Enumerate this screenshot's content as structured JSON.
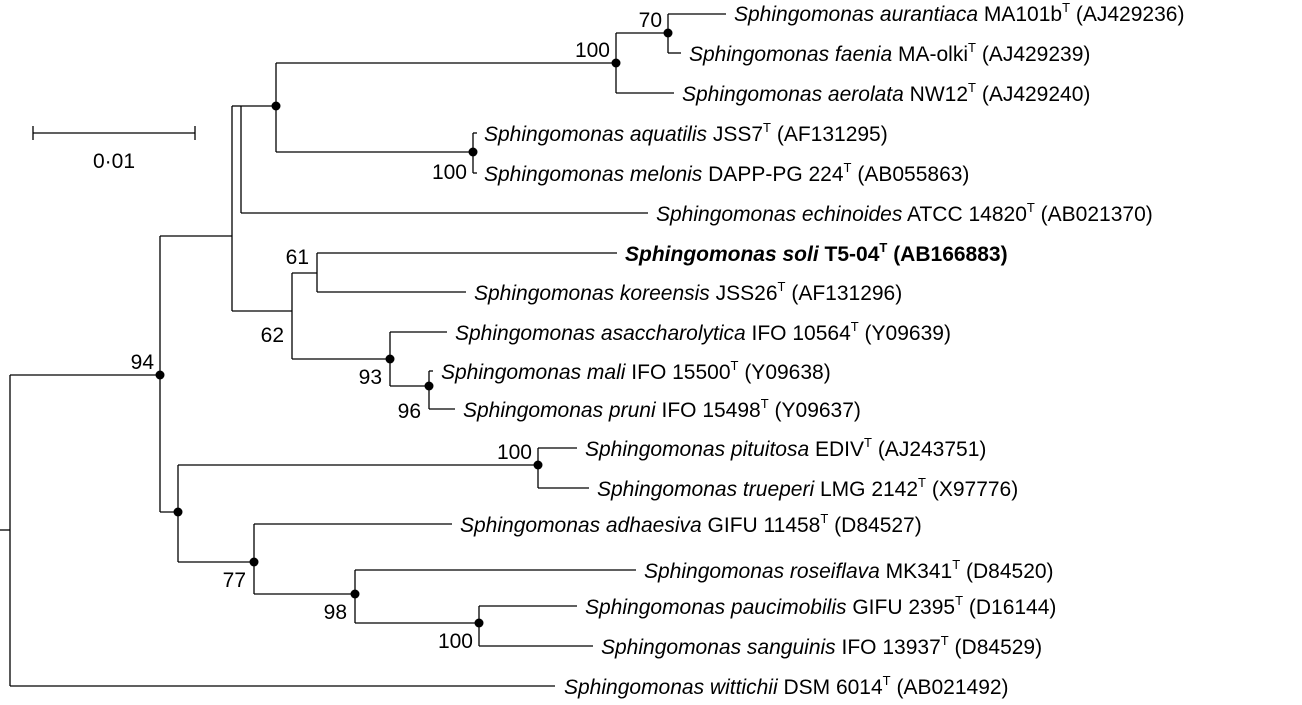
{
  "scale_bar": {
    "label": "0·01"
  },
  "taxa": [
    {
      "id": "aurantiaca",
      "genus": "Sphingomonas aurantiaca",
      "strain": "MA101b",
      "type_mark": "T",
      "accession": "(AJ429236)"
    },
    {
      "id": "faenia",
      "genus": "Sphingomonas faenia",
      "strain": "MA-olki",
      "type_mark": "T",
      "accession": "(AJ429239)"
    },
    {
      "id": "aerolata",
      "genus": "Sphingomonas aerolata",
      "strain": "NW12",
      "type_mark": "T",
      "accession": "(AJ429240)"
    },
    {
      "id": "aquatilis",
      "genus": "Sphingomonas aquatilis",
      "strain": "JSS7",
      "type_mark": "T",
      "accession": "(AF131295)"
    },
    {
      "id": "melonis",
      "genus": "Sphingomonas melonis",
      "strain": "DAPP-PG 224",
      "type_mark": "T",
      "accession": "(AB055863)"
    },
    {
      "id": "echinoides",
      "genus": "Sphingomonas echinoides",
      "strain": "ATCC 14820",
      "type_mark": "T",
      "accession": "(AB021370)"
    },
    {
      "id": "soli",
      "genus": "Sphingomonas soli",
      "strain": "T5-04",
      "type_mark": "T",
      "accession": "(AB166883)",
      "bold": true
    },
    {
      "id": "koreensis",
      "genus": "Sphingomonas koreensis",
      "strain": "JSS26",
      "type_mark": "T",
      "accession": "(AF131296)"
    },
    {
      "id": "asaccharolytica",
      "genus": "Sphingomonas asaccharolytica",
      "strain": "IFO 10564",
      "type_mark": "T",
      "accession": "(Y09639)"
    },
    {
      "id": "mali",
      "genus": "Sphingomonas mali",
      "strain": "IFO 15500",
      "type_mark": "T",
      "accession": "(Y09638)"
    },
    {
      "id": "pruni",
      "genus": "Sphingomonas pruni",
      "strain": "IFO 15498",
      "type_mark": "T",
      "accession": "(Y09637)"
    },
    {
      "id": "pituitosa",
      "genus": "Sphingomonas pituitosa",
      "strain": "EDIV",
      "type_mark": "T",
      "accession": "(AJ243751)"
    },
    {
      "id": "trueperi",
      "genus": "Sphingomonas trueperi",
      "strain": "LMG 2142",
      "type_mark": "T",
      "accession": "(X97776)"
    },
    {
      "id": "adhaesiva",
      "genus": "Sphingomonas adhaesiva",
      "strain": "GIFU 11458",
      "type_mark": "T",
      "accession": "(D84527)"
    },
    {
      "id": "roseiflava",
      "genus": "Sphingomonas roseiflava",
      "strain": "MK341",
      "type_mark": "T",
      "accession": "(D84520)"
    },
    {
      "id": "paucimobilis",
      "genus": "Sphingomonas paucimobilis",
      "strain": "GIFU 2395",
      "type_mark": "T",
      "accession": "(D16144)"
    },
    {
      "id": "sanguinis",
      "genus": "Sphingomonas sanguinis",
      "strain": "IFO 13937",
      "type_mark": "T",
      "accession": "(D84529)"
    },
    {
      "id": "wittichii",
      "genus": "Sphingomonas wittichii",
      "strain": "DSM 6014",
      "type_mark": "T",
      "accession": "(AB021492)"
    }
  ],
  "bootstrap": {
    "aurantiaca_faenia": "70",
    "aurantiaca_group": "100",
    "aquatilis_melonis": "100",
    "soli_koreensis": "61",
    "koreensis_clade": "62",
    "asaccharolytica_group": "93",
    "mali_pruni": "96",
    "major_clade": "94",
    "pituitosa_trueperi": "100",
    "adhaesiva_group": "77",
    "roseiflava_group": "98",
    "paucimobilis_sanguinis": "100"
  }
}
